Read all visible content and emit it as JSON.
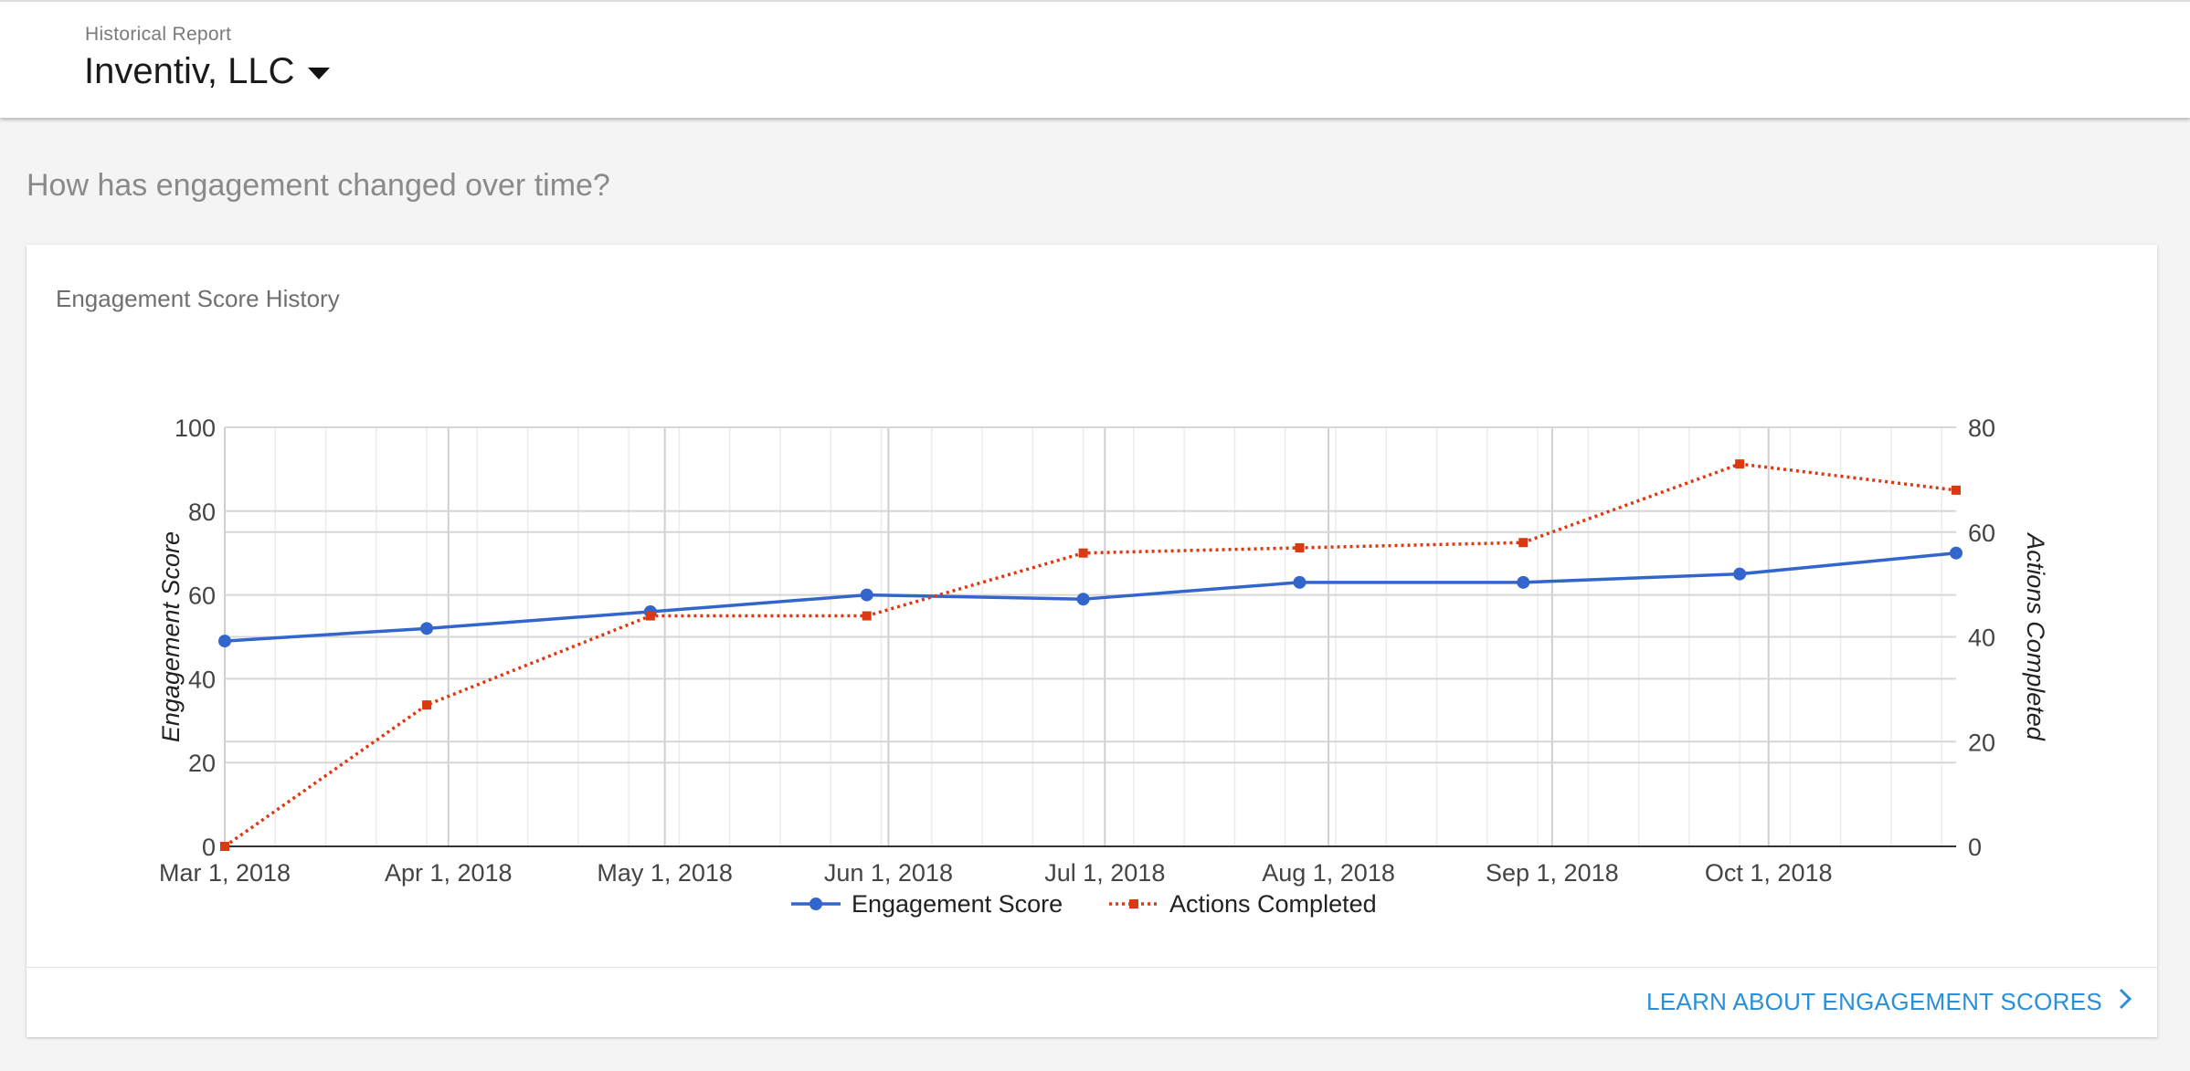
{
  "header": {
    "eyebrow": "Historical Report",
    "company": "Inventiv, LLC"
  },
  "main": {
    "question": "How has engagement changed over time?"
  },
  "card": {
    "title": "Engagement Score History",
    "footer_link": "LEARN ABOUT ENGAGEMENT SCORES"
  },
  "colors": {
    "engagement": "#3366cc",
    "actions": "#dc3912",
    "link": "#2b8fd6"
  },
  "chart_data": {
    "type": "line",
    "title": "",
    "x_ticks": [
      "Mar 1, 2018",
      "Apr 1, 2018",
      "May 1, 2018",
      "Jun 1, 2018",
      "Jul 1, 2018",
      "Aug 1, 2018",
      "Sep 1, 2018",
      "Oct 1, 2018"
    ],
    "x_range": [
      "2018-03-01",
      "2018-10-27"
    ],
    "y_left": {
      "label": "Engagement Score",
      "ylim": [
        0,
        100
      ],
      "ticks": [
        0,
        20,
        40,
        60,
        80,
        100
      ]
    },
    "y_right": {
      "label": "Actions Completed",
      "ylim": [
        0,
        80
      ],
      "ticks": [
        0,
        20,
        40,
        60,
        80
      ]
    },
    "grid": true,
    "legend_position": "bottom",
    "series": [
      {
        "name": "Engagement Score",
        "axis": "left",
        "style": "solid-circle",
        "points": [
          {
            "x": "2018-03-01",
            "y": 49
          },
          {
            "x": "2018-03-29",
            "y": 52
          },
          {
            "x": "2018-04-29",
            "y": 56
          },
          {
            "x": "2018-05-29",
            "y": 60
          },
          {
            "x": "2018-06-28",
            "y": 59
          },
          {
            "x": "2018-07-28",
            "y": 63
          },
          {
            "x": "2018-08-28",
            "y": 63
          },
          {
            "x": "2018-09-27",
            "y": 65
          },
          {
            "x": "2018-10-27",
            "y": 70
          }
        ]
      },
      {
        "name": "Actions Completed",
        "axis": "right",
        "style": "dotted-square",
        "points": [
          {
            "x": "2018-03-01",
            "y": 0
          },
          {
            "x": "2018-03-29",
            "y": 27
          },
          {
            "x": "2018-04-29",
            "y": 44
          },
          {
            "x": "2018-05-29",
            "y": 44
          },
          {
            "x": "2018-06-28",
            "y": 56
          },
          {
            "x": "2018-07-28",
            "y": 57
          },
          {
            "x": "2018-08-28",
            "y": 58
          },
          {
            "x": "2018-09-27",
            "y": 73
          },
          {
            "x": "2018-10-27",
            "y": 68
          }
        ]
      }
    ]
  }
}
